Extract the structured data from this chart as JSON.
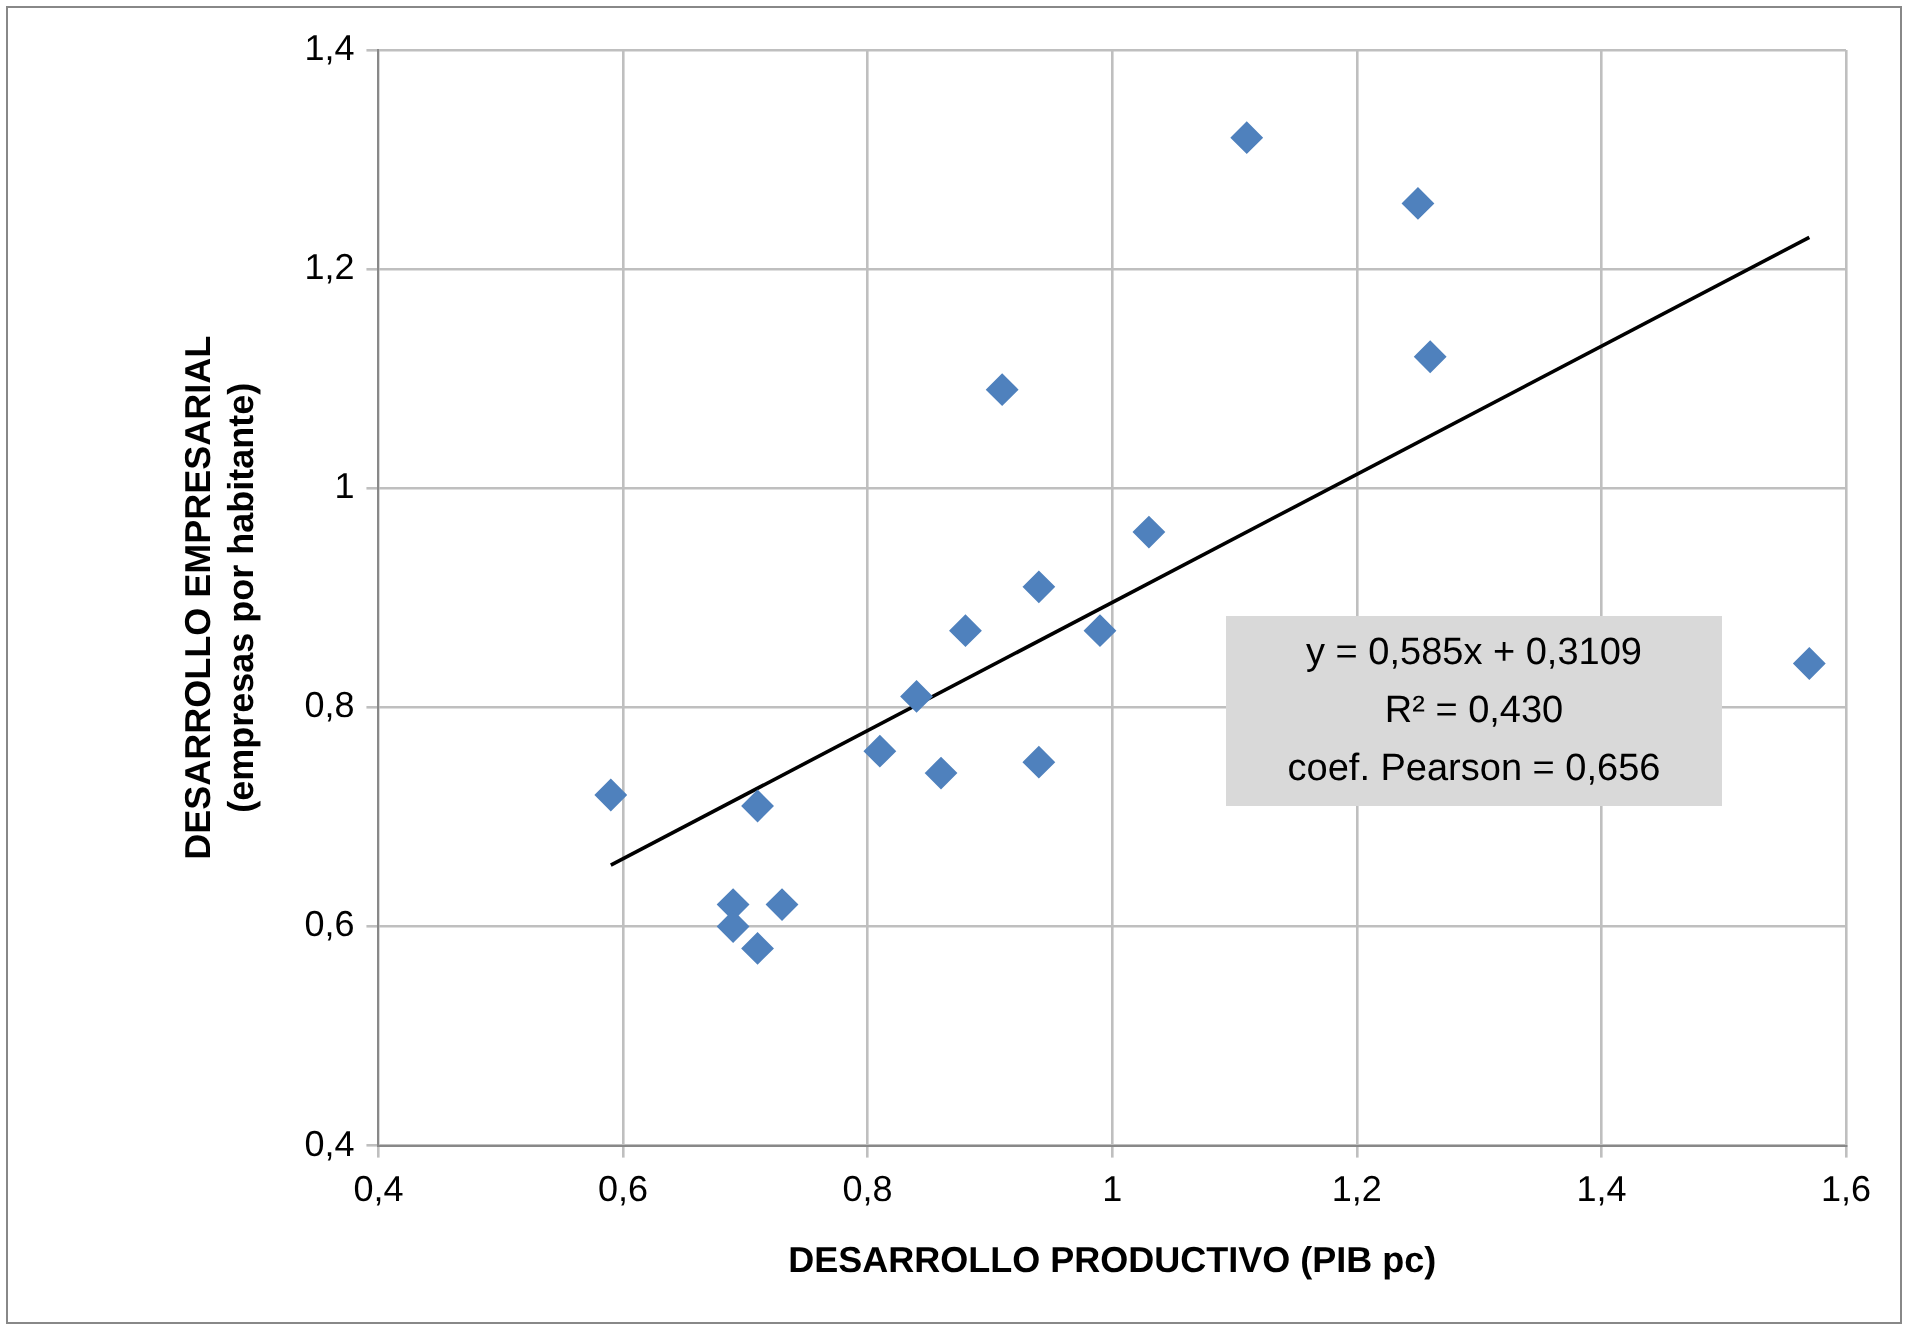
{
  "chart_data": {
    "type": "scatter",
    "xlabel": "DESARROLLO PRODUCTIVO (PIB pc)",
    "ylabel": "DESARROLLO EMPRESARIAL\n(empresas por habitante)",
    "xlim": [
      0.4,
      1.6
    ],
    "xticks": [
      {
        "value": 0.4,
        "label": "0,4"
      },
      {
        "value": 0.6,
        "label": "0,6"
      },
      {
        "value": 0.8,
        "label": "0,8"
      },
      1,
      {
        "value": 1.2,
        "label": "1,2"
      },
      {
        "value": 1.4,
        "label": "1,4"
      },
      {
        "value": 1.6,
        "label": "1,6"
      }
    ],
    "ylim": [
      0.4,
      1.4
    ],
    "yticks": [
      {
        "value": 0.4,
        "label": "0,4"
      },
      {
        "value": 0.6,
        "label": "0,6"
      },
      {
        "value": 0.8,
        "label": "0,8"
      },
      1,
      {
        "value": 1.2,
        "label": "1,2"
      },
      {
        "value": 1.4,
        "label": "1,4"
      }
    ],
    "grid": true,
    "series": [
      {
        "marker": "diamond",
        "color": "#4f81bd",
        "x": [
          1.11,
          1.25,
          1.26,
          0.91,
          1.03,
          0.94,
          0.88,
          0.99,
          1.57,
          0.84,
          0.81,
          0.86,
          0.94,
          0.59,
          0.71,
          0.69,
          0.73,
          0.69,
          0.71
        ],
        "values": [
          1.32,
          1.26,
          1.12,
          1.09,
          0.96,
          0.91,
          0.87,
          0.87,
          0.84,
          0.81,
          0.76,
          0.74,
          0.75,
          0.72,
          0.71,
          0.62,
          0.62,
          0.6,
          0.58
        ]
      },
      {
        "type": "line",
        "marker": "none",
        "color": "#000000",
        "x": [
          0.59,
          1.57
        ],
        "values": [
          0.656,
          1.229
        ]
      }
    ],
    "annotations": [
      "y = 0,585x + 0,3109",
      "R² = 0,430",
      "coef. Pearson = 0,656"
    ]
  }
}
